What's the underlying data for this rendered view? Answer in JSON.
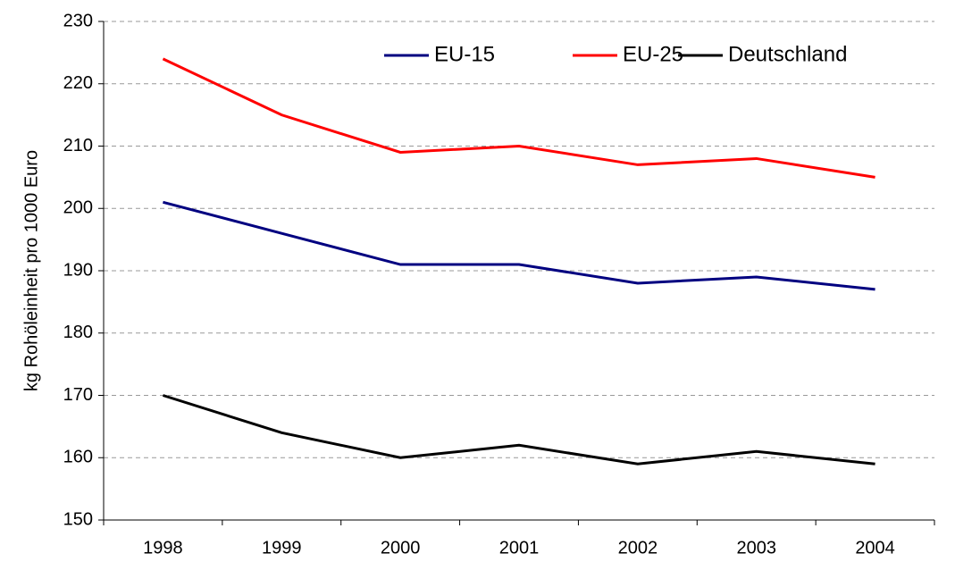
{
  "chart_data": {
    "type": "line",
    "y_label": "kg Rohöleinheit pro 1000 Euro",
    "categories": [
      "1998",
      "1999",
      "2000",
      "2001",
      "2002",
      "2003",
      "2004"
    ],
    "series": [
      {
        "name": "EU-15",
        "color": "#000080",
        "values": [
          201,
          196,
          191,
          191,
          188,
          189,
          187
        ]
      },
      {
        "name": "EU-25",
        "color": "#ff0000",
        "values": [
          224,
          215,
          209,
          210,
          207,
          208,
          205
        ]
      },
      {
        "name": "Deutschland",
        "color": "#000000",
        "values": [
          170,
          164,
          160,
          162,
          159,
          161,
          159
        ]
      }
    ],
    "ylim": [
      150,
      230
    ],
    "yticks": [
      150,
      160,
      170,
      180,
      190,
      200,
      210,
      220,
      230
    ],
    "grid": true,
    "legend": "top-right"
  }
}
